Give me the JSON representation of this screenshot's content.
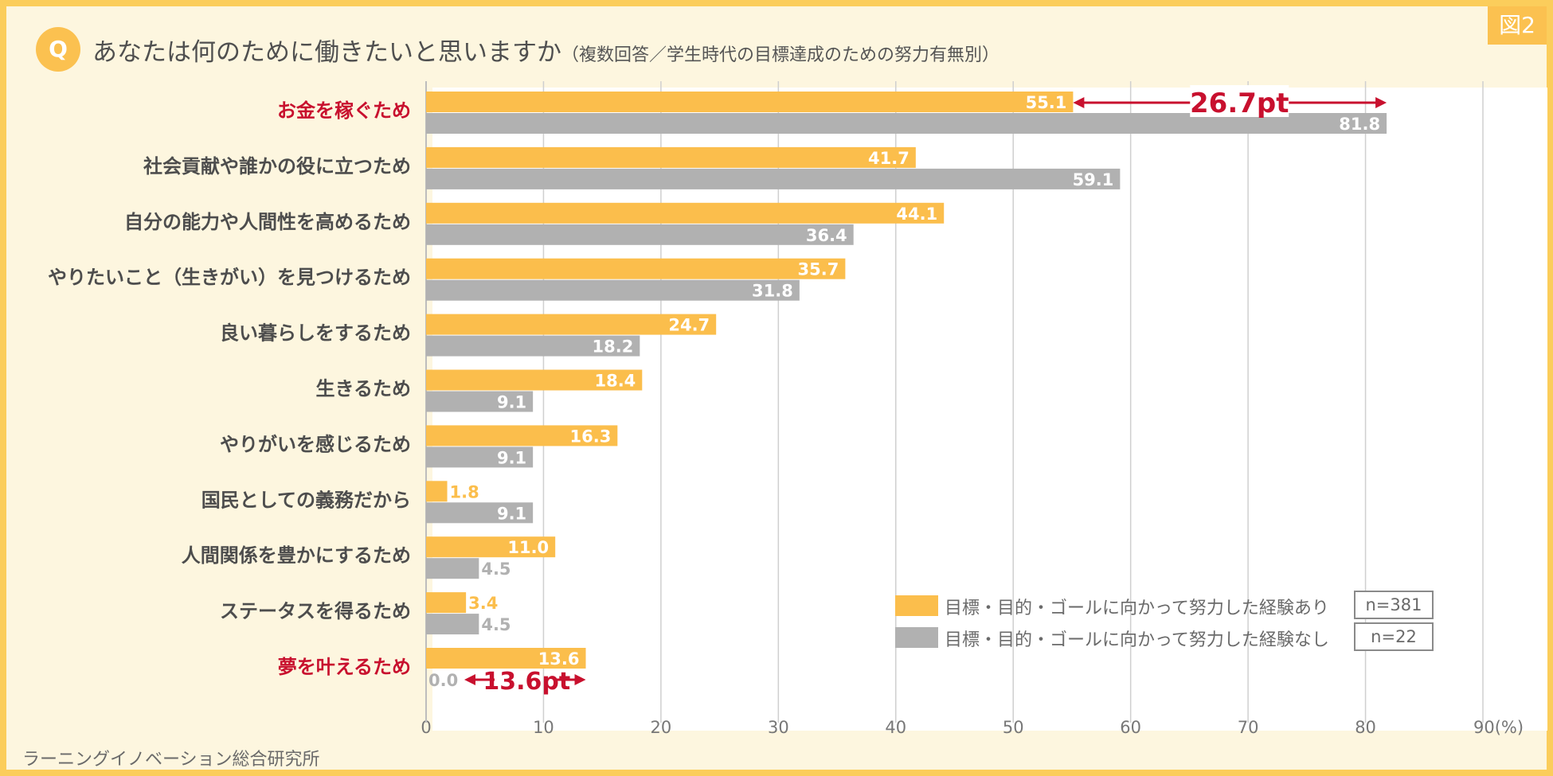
{
  "badge": "図2",
  "q_mark": "Q",
  "title": "あなたは何のために働きたいと思いますか",
  "subtitle": "（複数回答／学生時代の目標達成のための努力有無別）",
  "source": "ラーニングイノベーション総合研究所",
  "colors": {
    "with": "#fbbe4c",
    "without": "#b1b1b1",
    "highlight": "#c8102e",
    "label": "#4d4d4d"
  },
  "legend": {
    "with_label": "目標・目的・ゴールに向かって努力した経験あり",
    "with_n": "n=381",
    "without_label": "目標・目的・ゴールに向かって努力した経験なし",
    "without_n": "n=22"
  },
  "annotations": [
    {
      "category_index": 0,
      "text": "26.7pt"
    },
    {
      "category_index": 10,
      "text": "13.6pt"
    }
  ],
  "chart_data": {
    "type": "bar",
    "orientation": "horizontal",
    "xlim": [
      0,
      90
    ],
    "x_ticks": [
      "0",
      "10",
      "20",
      "30",
      "40",
      "50",
      "60",
      "70",
      "80",
      "90(%)"
    ],
    "tick_values": [
      0,
      10,
      20,
      30,
      40,
      50,
      60,
      70,
      80,
      90
    ],
    "grid": true,
    "categories": [
      "お金を稼ぐため",
      "社会貢献や誰かの役に立つため",
      "自分の能力や人間性を高めるため",
      "やりたいこと（生きがい）を見つけるため",
      "良い暮らしをするため",
      "生きるため",
      "やりがいを感じるため",
      "国民としての義務だから",
      "人間関係を豊かにするため",
      "ステータスを得るため",
      "夢を叶えるため"
    ],
    "highlight_categories": [
      0,
      10
    ],
    "series": [
      {
        "name": "目標・目的・ゴールに向かって努力した経験あり",
        "values": [
          55.1,
          41.7,
          44.1,
          35.7,
          24.7,
          18.4,
          16.3,
          1.8,
          11.0,
          3.4,
          13.6
        ],
        "labels": [
          "55.1",
          "41.7",
          "44.1",
          "35.7",
          "24.7",
          "18.4",
          "16.3",
          "1.8",
          "11.0",
          "3.4",
          "13.6"
        ]
      },
      {
        "name": "目標・目的・ゴールに向かって努力した経験なし",
        "values": [
          81.8,
          59.1,
          36.4,
          31.8,
          18.2,
          9.1,
          9.1,
          9.1,
          4.5,
          4.5,
          0.0
        ],
        "labels": [
          "81.8",
          "59.1",
          "36.4",
          "31.8",
          "18.2",
          "9.1",
          "9.1",
          "9.1",
          "4.5",
          "4.5",
          "0.0"
        ]
      }
    ]
  }
}
